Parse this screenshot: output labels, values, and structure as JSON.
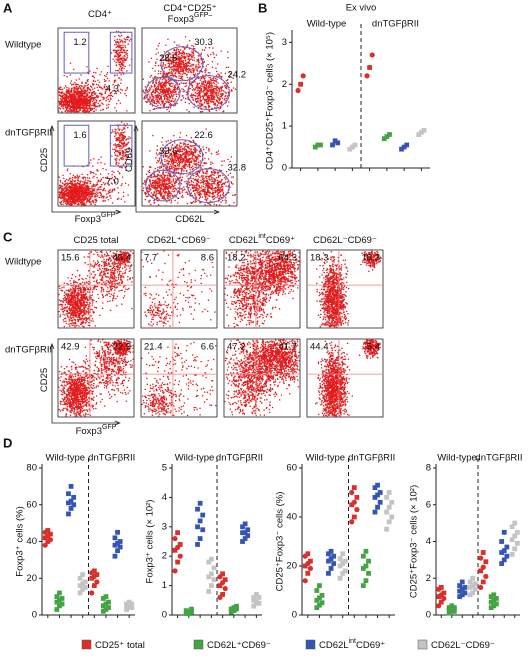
{
  "panel_a": {
    "label": "A",
    "header_left": [
      {
        "t": "CD4⁺"
      }
    ],
    "header_right_1": [
      {
        "t": "CD4⁺CD25⁺"
      }
    ],
    "header_right_2": [
      {
        "t": "Foxp3"
      },
      {
        "t": "GFP–",
        "sup": true
      }
    ],
    "rows": [
      "Wildtype",
      "dnTGFβRII"
    ],
    "y_label_left": [
      {
        "t": "CD25"
      }
    ],
    "x_label_left": [
      {
        "t": "Foxp3"
      },
      {
        "t": "GFP",
        "sup": true
      }
    ],
    "y_label_right": [
      {
        "t": "CD69"
      }
    ],
    "x_label_right": [
      {
        "t": "CD62L"
      }
    ],
    "plots": [
      {
        "numbers": [
          "1.2",
          "4.3"
        ]
      },
      {
        "numbers": [
          "28.5",
          "30.3",
          "24.2"
        ]
      },
      {
        "numbers": [
          "1.6",
          "7.0"
        ]
      },
      {
        "numbers": [
          "33.6",
          "22.6",
          "32.8"
        ]
      }
    ]
  },
  "panel_b": {
    "label": "B"
  },
  "panel_c": {
    "label": "C",
    "headers": [
      [
        {
          "t": "CD25 total"
        }
      ],
      [
        {
          "t": "CD62L⁺CD69⁻"
        }
      ],
      [
        {
          "t": "CD62L"
        },
        {
          "t": "int",
          "sup": true
        },
        {
          "t": "CD69⁺"
        }
      ],
      [
        {
          "t": "CD62L⁻CD69⁻"
        }
      ]
    ],
    "rows": [
      "Wildtype",
      "dnTGFβRII"
    ],
    "y_label": [
      {
        "t": "CD25"
      }
    ],
    "x_label": [
      {
        "t": "Foxp3"
      },
      {
        "t": "GFP",
        "sup": true
      }
    ],
    "plots": [
      {
        "numbers": [
          "15.6",
          "45.4"
        ]
      },
      {
        "numbers": [
          "7.7",
          "8.6"
        ]
      },
      {
        "numbers": [
          "18.2",
          "64.3"
        ]
      },
      {
        "numbers": [
          "18.3",
          "18.3"
        ]
      },
      {
        "numbers": [
          "42.9",
          "22.9"
        ]
      },
      {
        "numbers": [
          "21.4",
          "6.6"
        ]
      },
      {
        "numbers": [
          "47.2",
          "41.7"
        ]
      },
      {
        "numbers": [
          "44.4",
          "5.4"
        ]
      }
    ]
  },
  "panel_d": {
    "label": "D"
  },
  "legend": [
    {
      "name": [
        {
          "t": "CD25⁺ total"
        }
      ],
      "color": "#d9302c"
    },
    {
      "name": [
        {
          "t": "CD62L⁺CD69⁻"
        }
      ],
      "color": "#44a444"
    },
    {
      "name": [
        {
          "t": "CD62L"
        },
        {
          "t": "int",
          "sup": true
        },
        {
          "t": "CD69⁺"
        }
      ],
      "color": "#3555b5"
    },
    {
      "name": [
        {
          "t": "CD62L⁻CD69⁻"
        }
      ],
      "color": "#c4c4c4"
    }
  ],
  "chart_data": [
    {
      "type": "dot",
      "title": "Ex vivo",
      "y_label": "CD4⁺CD25⁺Foxp3⁻ cells (× 10⁵)",
      "groups": [
        "Wild-type",
        "dnTGFβRII"
      ],
      "ylim": [
        0,
        3.2
      ],
      "yticks": [
        0,
        1,
        2,
        3
      ],
      "series": [
        {
          "values": [
            [
              1.85,
              2.0,
              2.2
            ],
            [
              2.2,
              2.4,
              2.7
            ]
          ]
        },
        {
          "values": [
            [
              0.5,
              0.55,
              0.55
            ],
            [
              0.7,
              0.75,
              0.8
            ]
          ]
        },
        {
          "values": [
            [
              0.55,
              0.65,
              0.6
            ],
            [
              0.45,
              0.5,
              0.55
            ]
          ]
        },
        {
          "values": [
            [
              0.45,
              0.5,
              0.55
            ],
            [
              0.8,
              0.85,
              0.9
            ]
          ]
        }
      ]
    },
    {
      "type": "dot",
      "y_label": "Foxp3⁺ cells (%)",
      "groups": [
        "Wild-type",
        "dnTGFβRII"
      ],
      "ylim": [
        0,
        80
      ],
      "yticks": [
        0,
        20,
        40,
        60,
        80
      ],
      "series": [
        {
          "values": [
            [
              38,
              40,
              41,
              42,
              43,
              44,
              45,
              46
            ],
            [
              12,
              16,
              18,
              20,
              21,
              22,
              23,
              24
            ]
          ]
        },
        {
          "values": [
            [
              3,
              5,
              6,
              7,
              8,
              9,
              10,
              12
            ],
            [
              2,
              3,
              4,
              5,
              6,
              7,
              9,
              10
            ]
          ]
        },
        {
          "values": [
            [
              55,
              58,
              60,
              61,
              62,
              64,
              66,
              70
            ],
            [
              32,
              35,
              37,
              38,
              39,
              40,
              42,
              45
            ]
          ]
        },
        {
          "values": [
            [
              12,
              14,
              15,
              16,
              17,
              18,
              20,
              22
            ],
            [
              3,
              4,
              4,
              5,
              5,
              6,
              6,
              7
            ]
          ]
        }
      ]
    },
    {
      "type": "dot",
      "y_label": "Foxp3⁺ cells (× 10²)",
      "groups": [
        "Wild-type",
        "dnTGFβRII"
      ],
      "ylim": [
        0,
        5
      ],
      "yticks": [
        0,
        1,
        2,
        3,
        4,
        5
      ],
      "series": [
        {
          "values": [
            [
              1.5,
              1.8,
              2.0,
              2.2,
              2.3,
              2.4,
              2.6,
              2.8
            ],
            [
              0.6,
              0.7,
              0.9,
              1.0,
              1.1,
              1.2,
              1.3,
              1.4
            ]
          ]
        },
        {
          "values": [
            [
              0.05,
              0.1,
              0.1,
              0.15,
              0.1,
              0.2,
              0.1,
              0.05
            ],
            [
              0.1,
              0.15,
              0.2,
              0.2,
              0.25,
              0.3,
              0.2,
              0.15
            ]
          ]
        },
        {
          "values": [
            [
              2.4,
              2.6,
              2.9,
              3.0,
              3.2,
              3.4,
              3.6,
              3.8
            ],
            [
              2.5,
              2.6,
              2.7,
              2.8,
              2.8,
              2.9,
              3.0,
              3.1
            ]
          ]
        },
        {
          "values": [
            [
              0.8,
              1.0,
              1.2,
              1.3,
              1.4,
              1.6,
              1.8,
              1.9
            ],
            [
              0.3,
              0.4,
              0.4,
              0.5,
              0.5,
              0.6,
              0.6,
              0.7
            ]
          ]
        }
      ]
    },
    {
      "type": "dot",
      "y_label": "CD25⁺Foxp3⁻ cells (%)",
      "groups": [
        "Wild-type",
        "dnTGFβRII"
      ],
      "ylim": [
        0,
        60
      ],
      "yticks": [
        0,
        20,
        40,
        60
      ],
      "series": [
        {
          "values": [
            [
              14,
              17,
              19,
              20,
              21,
              22,
              24,
              25
            ],
            [
              38,
              40,
              43,
              45,
              46,
              48,
              50,
              52
            ]
          ]
        },
        {
          "values": [
            [
              3,
              4,
              5,
              6,
              7,
              8,
              10,
              12
            ],
            [
              12,
              14,
              17,
              19,
              20,
              22,
              24,
              26
            ]
          ]
        },
        {
          "values": [
            [
              17,
              19,
              21,
              22,
              23,
              24,
              25,
              26
            ],
            [
              42,
              44,
              46,
              48,
              49,
              50,
              52,
              53
            ]
          ]
        },
        {
          "values": [
            [
              15,
              17,
              18,
              20,
              21,
              22,
              23,
              25
            ],
            [
              35,
              38,
              40,
              42,
              44,
              46,
              48,
              50
            ]
          ]
        }
      ]
    },
    {
      "type": "dot",
      "y_label": "CD25⁺Foxp3⁻ cells (× 10²)",
      "groups": [
        "Wild-type",
        "dnTGFβRII"
      ],
      "ylim": [
        0,
        8
      ],
      "yticks": [
        0,
        2,
        4,
        6,
        8
      ],
      "series": [
        {
          "values": [
            [
              0.5,
              0.7,
              0.9,
              1.0,
              1.1,
              1.2,
              1.4,
              1.5
            ],
            [
              1.5,
              1.8,
              2.1,
              2.4,
              2.6,
              2.9,
              3.1,
              3.4
            ]
          ]
        },
        {
          "values": [
            [
              0.1,
              0.2,
              0.2,
              0.3,
              0.3,
              0.4,
              0.4,
              0.5
            ],
            [
              0.4,
              0.5,
              0.6,
              0.7,
              0.8,
              0.9,
              1.0,
              1.1
            ]
          ]
        },
        {
          "values": [
            [
              1.0,
              1.1,
              1.2,
              1.3,
              1.4,
              1.5,
              1.6,
              1.8
            ],
            [
              2.8,
              3.0,
              3.2,
              3.4,
              3.5,
              3.7,
              4.0,
              4.5
            ]
          ]
        },
        {
          "values": [
            [
              1.1,
              1.2,
              1.4,
              1.5,
              1.6,
              1.7,
              1.8,
              2.0
            ],
            [
              3.3,
              3.6,
              3.9,
              4.1,
              4.3,
              4.5,
              4.8,
              5.0
            ]
          ]
        }
      ]
    }
  ]
}
